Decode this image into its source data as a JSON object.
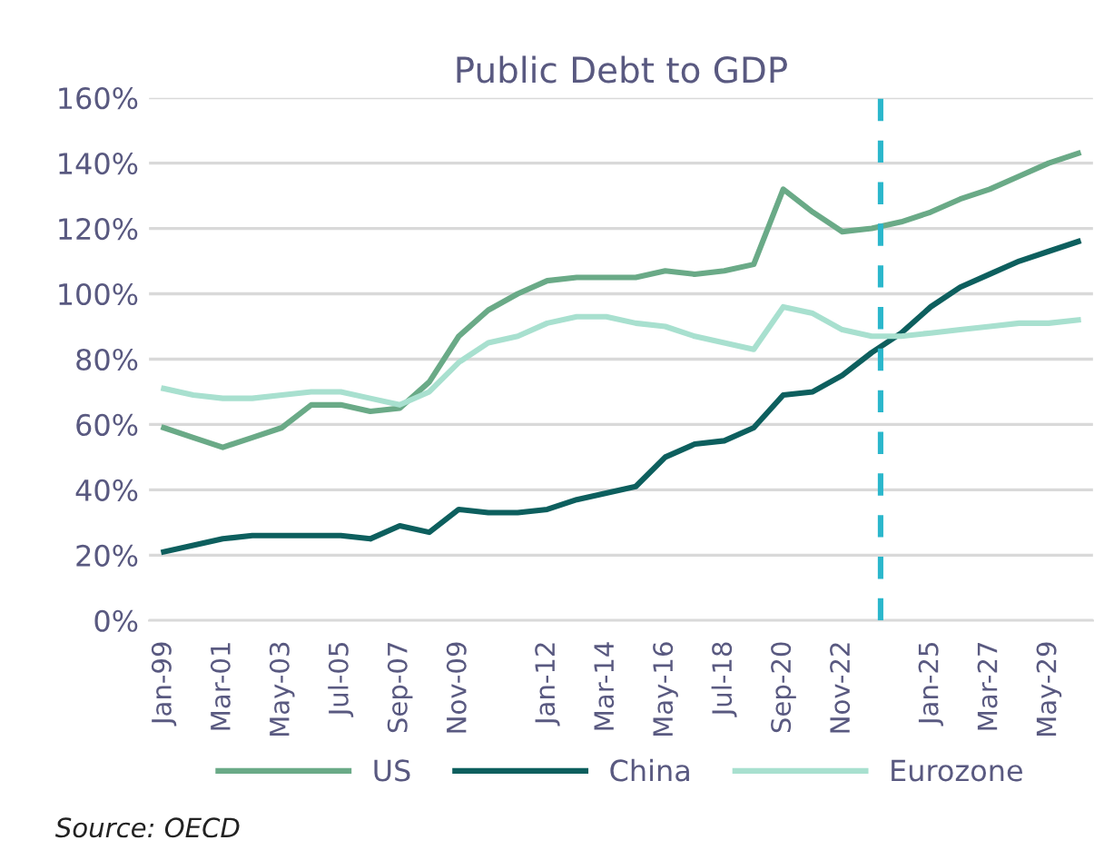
{
  "chart_data": {
    "type": "line",
    "title": "Public Debt to GDP",
    "categories": [
      "Jan-99",
      null,
      "Mar-01",
      null,
      "May-03",
      null,
      "Jul-05",
      null,
      "Sep-07",
      null,
      "Nov-09",
      null,
      null,
      "Jan-12",
      null,
      "Mar-14",
      null,
      "May-16",
      null,
      "Jul-18",
      null,
      "Sep-20",
      null,
      "Nov-22",
      null,
      null,
      "Jan-25",
      null,
      "Mar-27",
      null,
      "May-29",
      null
    ],
    "series": [
      {
        "name": "US",
        "color": "#6aaa87",
        "values": [
          59,
          56,
          53,
          56,
          59,
          66,
          66,
          64,
          65,
          73,
          87,
          95,
          100,
          104,
          105,
          105,
          105,
          107,
          106,
          107,
          109,
          132,
          125,
          119,
          120,
          122,
          125,
          129,
          132,
          136,
          140,
          143
        ]
      },
      {
        "name": "China",
        "color": "#0d5f5e",
        "values": [
          21,
          23,
          25,
          26,
          26,
          26,
          26,
          25,
          29,
          27,
          34,
          33,
          33,
          34,
          37,
          39,
          41,
          50,
          54,
          55,
          59,
          69,
          70,
          75,
          82,
          88,
          96,
          102,
          106,
          110,
          113,
          116
        ]
      },
      {
        "name": "Eurozone",
        "color": "#a8e0cf",
        "values": [
          71,
          69,
          68,
          68,
          69,
          70,
          70,
          68,
          66,
          70,
          79,
          85,
          87,
          91,
          93,
          93,
          91,
          90,
          87,
          85,
          83,
          96,
          94,
          89,
          87,
          87,
          88,
          89,
          90,
          91,
          91,
          92
        ]
      }
    ],
    "ylim": [
      0,
      160
    ],
    "yticks": [
      {
        "value": 0,
        "label": "0%"
      },
      {
        "value": 20,
        "label": "20%"
      },
      {
        "value": 40,
        "label": "40%"
      },
      {
        "value": 60,
        "label": "60%"
      },
      {
        "value": 80,
        "label": "80%"
      },
      {
        "value": 100,
        "label": "100%"
      },
      {
        "value": 120,
        "label": "120%"
      },
      {
        "value": 140,
        "label": "140%"
      },
      {
        "value": 160,
        "label": "160%"
      }
    ],
    "grid": "y",
    "legend": "bottom",
    "marker": "none",
    "line_style": "solid",
    "annotations": [
      "Source: OECD"
    ]
  }
}
